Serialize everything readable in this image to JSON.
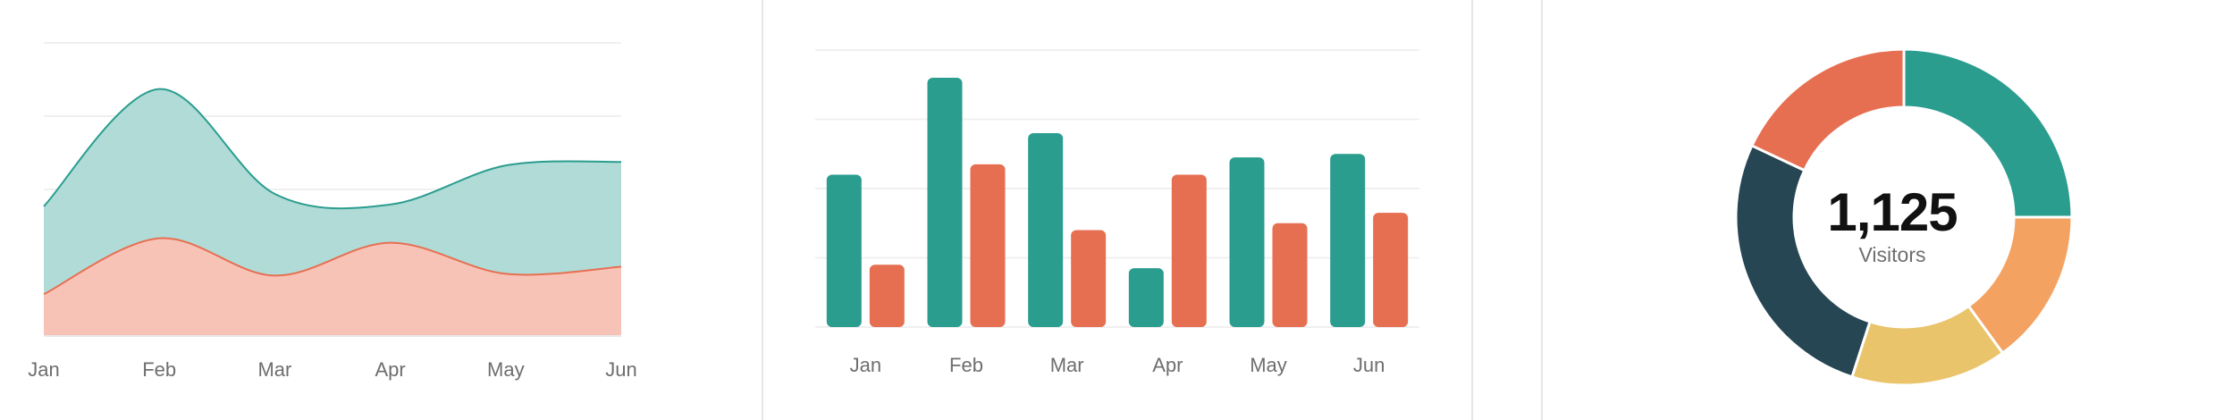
{
  "chart_data": [
    {
      "type": "area",
      "categories": [
        "Jan",
        "Feb",
        "Mar",
        "Apr",
        "May",
        "Jun"
      ],
      "series": [
        {
          "values": [
            146,
            278,
            160,
            148,
            192,
            196
          ],
          "color": "#2a9d8f",
          "fill": "#b0dbd7"
        },
        {
          "values": [
            47,
            110,
            68,
            105,
            70,
            78
          ],
          "color": "#e76f51",
          "fill": "#f7c3b7"
        }
      ],
      "ylim": [
        0,
        330
      ],
      "grid": true,
      "smooth": true
    },
    {
      "type": "bar",
      "categories": [
        "Jan",
        "Feb",
        "Mar",
        "Apr",
        "May",
        "Jun"
      ],
      "series": [
        {
          "values": [
            44,
            72,
            56,
            17,
            49,
            50
          ],
          "color": "#2a9d8f"
        },
        {
          "values": [
            18,
            47,
            28,
            44,
            30,
            33
          ],
          "color": "#e76f51"
        }
      ],
      "ylim": [
        0,
        80
      ],
      "grid": true
    },
    {
      "type": "pie",
      "donut": true,
      "center_value": "1,125",
      "center_label": "Visitors",
      "slices": [
        {
          "value": 25,
          "color": "#2a9d8f"
        },
        {
          "value": 15,
          "color": "#f4a261"
        },
        {
          "value": 15,
          "color": "#e9c46a"
        },
        {
          "value": 27,
          "color": "#264653"
        },
        {
          "value": 18,
          "color": "#e76f51"
        }
      ]
    }
  ]
}
